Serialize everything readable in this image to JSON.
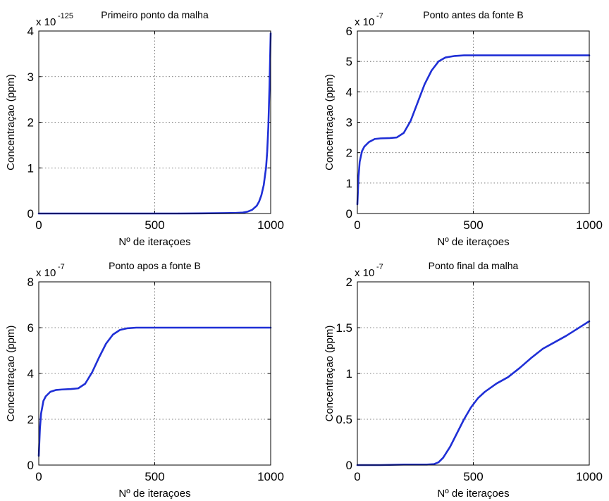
{
  "chart_data": [
    {
      "type": "line",
      "title": "Primeiro ponto da malha",
      "xlabel": "Nº de iteraçoes",
      "ylabel": "Concentraçao (ppm)",
      "y_multiplier": {
        "base": "x 10",
        "exponent": "-125"
      },
      "xlim": [
        0,
        1000
      ],
      "ylim": [
        0,
        4
      ],
      "xticks": [
        0,
        500,
        1000
      ],
      "yticks": [
        0,
        1,
        2,
        3,
        4
      ],
      "grid": true,
      "color": "#1f2fd6",
      "series": [
        {
          "x": [
            0,
            100,
            200,
            300,
            400,
            500,
            600,
            700,
            800,
            850,
            880,
            900,
            920,
            940,
            950,
            960,
            970,
            980,
            985,
            990,
            995,
            1000
          ],
          "y": [
            0,
            0,
            0,
            0,
            0,
            0,
            0,
            0.003,
            0.008,
            0.012,
            0.02,
            0.04,
            0.08,
            0.17,
            0.26,
            0.4,
            0.62,
            1.0,
            1.35,
            1.9,
            2.8,
            3.95
          ]
        }
      ]
    },
    {
      "type": "line",
      "title": "Ponto antes da fonte B",
      "xlabel": "Nº de iteraçoes",
      "ylabel": "Concentraçao (ppm)",
      "y_multiplier": {
        "base": "x 10",
        "exponent": "-7"
      },
      "xlim": [
        0,
        1000
      ],
      "ylim": [
        0,
        6
      ],
      "xticks": [
        0,
        500,
        1000
      ],
      "yticks": [
        0,
        1,
        2,
        3,
        4,
        5,
        6
      ],
      "grid": true,
      "color": "#1f2fd6",
      "series": [
        {
          "x": [
            0,
            5,
            10,
            20,
            30,
            50,
            75,
            100,
            140,
            170,
            200,
            230,
            260,
            290,
            320,
            350,
            380,
            420,
            460,
            500,
            600,
            700,
            800,
            900,
            1000
          ],
          "y": [
            0.3,
            1.2,
            1.7,
            2.05,
            2.2,
            2.35,
            2.45,
            2.47,
            2.48,
            2.5,
            2.65,
            3.05,
            3.65,
            4.25,
            4.7,
            5.0,
            5.13,
            5.18,
            5.2,
            5.2,
            5.2,
            5.2,
            5.2,
            5.2,
            5.2
          ]
        }
      ]
    },
    {
      "type": "line",
      "title": "Ponto apos a fonte B",
      "xlabel": "Nº de iteraçoes",
      "ylabel": "Concentraçao (ppm)",
      "y_multiplier": {
        "base": "x 10",
        "exponent": "-7"
      },
      "xlim": [
        0,
        1000
      ],
      "ylim": [
        0,
        8
      ],
      "xticks": [
        0,
        500,
        1000
      ],
      "yticks": [
        0,
        2,
        4,
        6,
        8
      ],
      "grid": true,
      "color": "#1f2fd6",
      "series": [
        {
          "x": [
            0,
            5,
            10,
            20,
            30,
            50,
            75,
            100,
            140,
            170,
            200,
            230,
            260,
            290,
            320,
            350,
            380,
            420,
            460,
            500,
            600,
            700,
            800,
            900,
            1000
          ],
          "y": [
            0.4,
            1.6,
            2.25,
            2.8,
            3.0,
            3.2,
            3.28,
            3.3,
            3.32,
            3.35,
            3.55,
            4.05,
            4.7,
            5.3,
            5.7,
            5.9,
            5.97,
            6.0,
            6.0,
            6.0,
            6.0,
            6.0,
            6.0,
            6.0,
            6.0
          ]
        }
      ]
    },
    {
      "type": "line",
      "title": "Ponto final da malha",
      "xlabel": "Nº de iteraçoes",
      "ylabel": "Concentraçao (ppm)",
      "y_multiplier": {
        "base": "x 10",
        "exponent": "-7"
      },
      "xlim": [
        0,
        1000
      ],
      "ylim": [
        0,
        2
      ],
      "xticks": [
        0,
        500,
        1000
      ],
      "yticks": [
        0,
        0.5,
        1,
        1.5,
        2
      ],
      "grid": true,
      "color": "#1f2fd6",
      "series": [
        {
          "x": [
            0,
            100,
            200,
            300,
            330,
            350,
            370,
            400,
            430,
            460,
            490,
            520,
            550,
            600,
            650,
            700,
            750,
            800,
            850,
            900,
            950,
            1000
          ],
          "y": [
            0,
            0,
            0.005,
            0.005,
            0.01,
            0.03,
            0.08,
            0.2,
            0.35,
            0.5,
            0.63,
            0.73,
            0.8,
            0.89,
            0.96,
            1.06,
            1.17,
            1.27,
            1.34,
            1.41,
            1.49,
            1.57
          ]
        }
      ]
    }
  ]
}
